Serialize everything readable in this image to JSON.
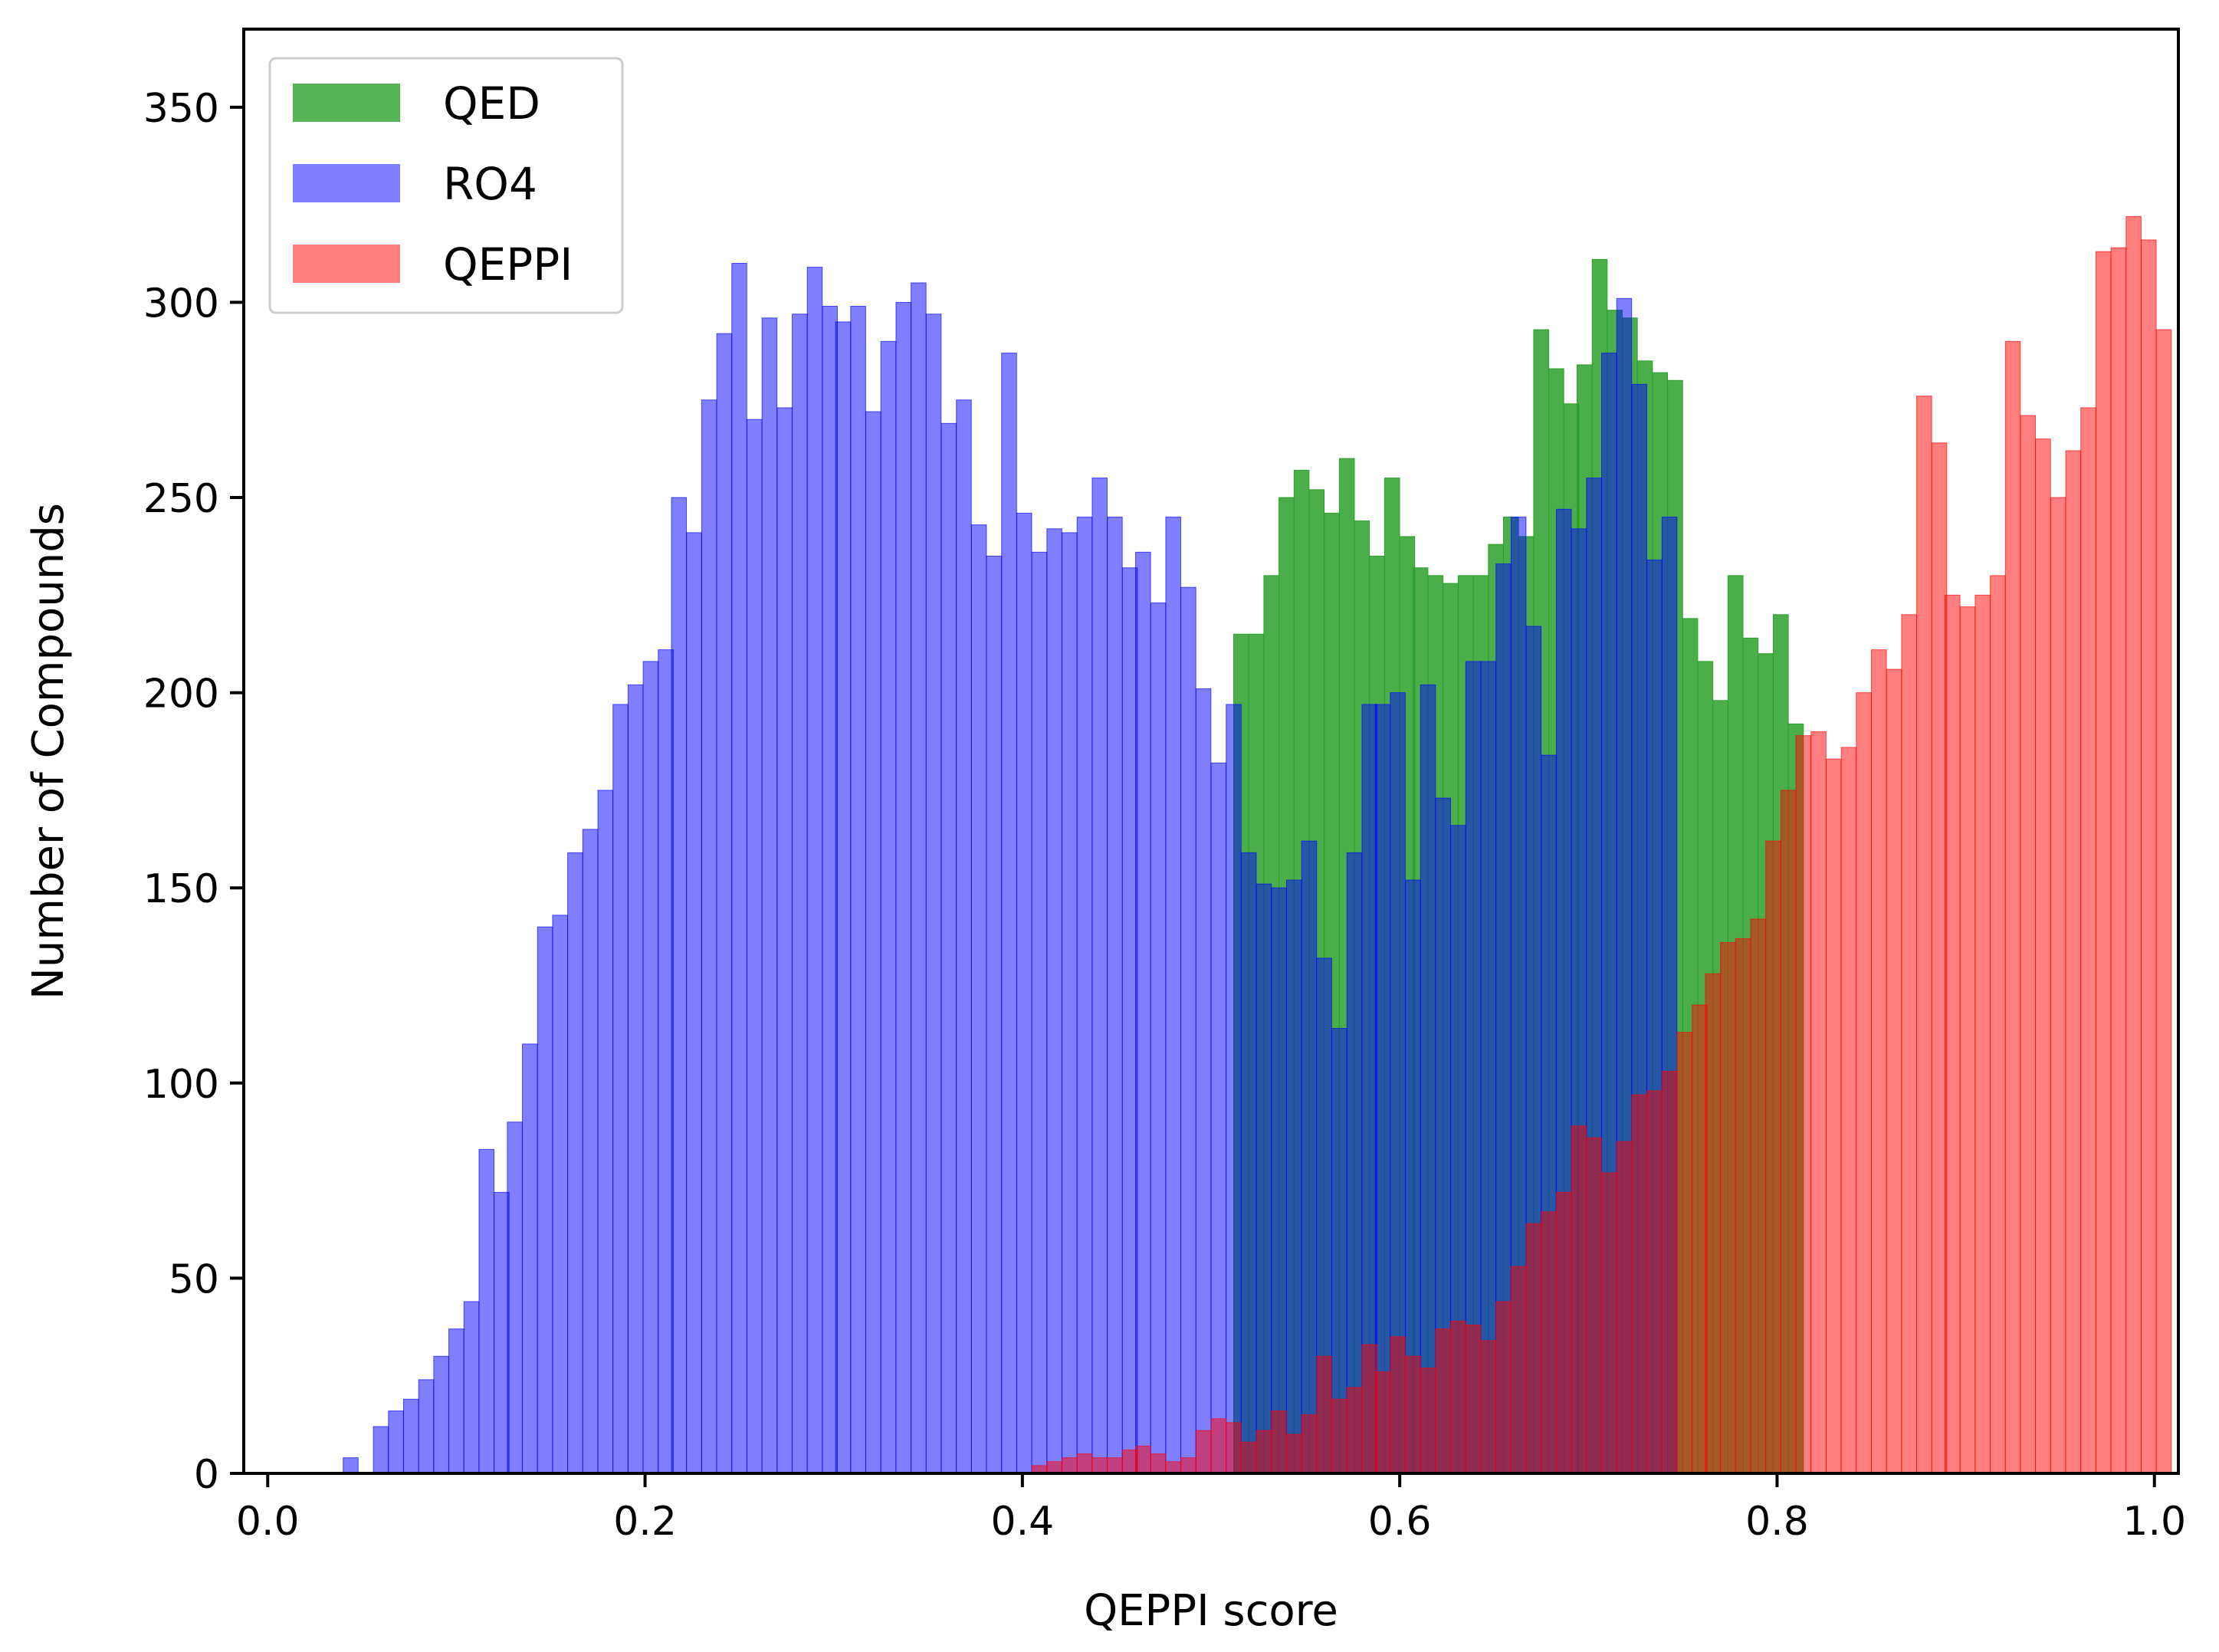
{
  "chart_data": {
    "type": "bar",
    "subtype": "histogram-overlay",
    "title": "",
    "xlabel": "QEPPI score",
    "ylabel": "Number of Compounds",
    "xlim": [
      -0.01,
      1.01
    ],
    "ylim": [
      0,
      370
    ],
    "xticks": [
      0.0,
      0.2,
      0.4,
      0.6,
      0.8,
      1.0
    ],
    "xtick_labels": [
      "0.0",
      "0.2",
      "0.4",
      "0.6",
      "0.8",
      "1.0"
    ],
    "yticks": [
      0,
      50,
      100,
      150,
      200,
      250,
      300,
      350
    ],
    "ytick_labels": [
      "0",
      "50",
      "100",
      "150",
      "200",
      "250",
      "300",
      "350"
    ],
    "grid": false,
    "legend_position": "top-left",
    "bin_width": 0.00794,
    "series": [
      {
        "name": "QED",
        "color": "#2ca02c",
        "alpha": 0.85,
        "x_start": 0.0,
        "values": [
          0,
          0,
          0,
          0,
          0,
          0,
          0,
          0,
          0,
          0,
          0,
          0,
          0,
          0,
          0,
          0,
          0,
          0,
          0,
          0,
          0,
          0,
          0,
          0,
          0,
          0,
          0,
          0,
          0,
          0,
          0,
          0,
          0,
          0,
          0,
          0,
          0,
          0,
          0,
          0,
          0,
          0,
          0,
          0,
          0,
          0,
          0,
          0,
          0,
          0,
          0,
          0,
          0,
          0,
          0,
          0,
          0,
          0,
          0,
          0,
          0,
          0,
          0,
          0,
          0,
          0,
          0,
          0,
          0,
          0,
          0,
          0,
          0,
          0,
          0,
          0,
          0,
          0,
          0,
          0,
          0,
          0,
          0,
          0,
          0,
          0,
          0,
          0,
          0,
          0,
          0,
          0,
          0,
          0,
          0,
          0,
          0,
          0,
          0,
          0,
          0,
          0,
          0,
          0,
          0,
          0,
          0,
          0,
          0,
          0,
          0,
          0,
          0,
          0,
          0,
          0,
          0,
          0,
          0,
          0,
          0,
          0,
          0,
          0,
          0,
          0
        ],
        "values_note": "",
        "bins": [
          [
            0.512,
            215
          ],
          [
            0.52,
            215
          ],
          [
            0.528,
            230
          ],
          [
            0.536,
            250
          ],
          [
            0.544,
            257
          ],
          [
            0.552,
            252
          ],
          [
            0.56,
            246
          ],
          [
            0.568,
            260
          ],
          [
            0.576,
            244
          ],
          [
            0.584,
            235
          ],
          [
            0.592,
            255
          ],
          [
            0.6,
            240
          ],
          [
            0.607,
            232
          ],
          [
            0.615,
            230
          ],
          [
            0.623,
            228
          ],
          [
            0.631,
            230
          ],
          [
            0.639,
            230
          ],
          [
            0.647,
            238
          ],
          [
            0.655,
            245
          ],
          [
            0.663,
            240
          ],
          [
            0.671,
            293
          ],
          [
            0.679,
            283
          ],
          [
            0.687,
            274
          ],
          [
            0.694,
            284
          ],
          [
            0.702,
            311
          ],
          [
            0.71,
            298
          ],
          [
            0.718,
            296
          ],
          [
            0.726,
            285
          ],
          [
            0.734,
            282
          ],
          [
            0.742,
            280
          ],
          [
            0.75,
            219
          ],
          [
            0.758,
            208
          ],
          [
            0.766,
            198
          ],
          [
            0.774,
            230
          ],
          [
            0.782,
            214
          ],
          [
            0.79,
            210
          ],
          [
            0.798,
            220
          ],
          [
            0.806,
            192
          ]
        ]
      },
      {
        "name": "RO4",
        "color": "#0000ff",
        "alpha": 0.5,
        "bins": [
          [
            0.04,
            4
          ],
          [
            0.048,
            0
          ],
          [
            0.056,
            12
          ],
          [
            0.064,
            16
          ],
          [
            0.072,
            19
          ],
          [
            0.08,
            24
          ],
          [
            0.088,
            30
          ],
          [
            0.096,
            37
          ],
          [
            0.104,
            44
          ],
          [
            0.112,
            83
          ],
          [
            0.12,
            72
          ],
          [
            0.127,
            90
          ],
          [
            0.135,
            110
          ],
          [
            0.143,
            140
          ],
          [
            0.151,
            143
          ],
          [
            0.159,
            159
          ],
          [
            0.167,
            165
          ],
          [
            0.175,
            175
          ],
          [
            0.183,
            197
          ],
          [
            0.191,
            202
          ],
          [
            0.199,
            208
          ],
          [
            0.207,
            211
          ],
          [
            0.214,
            250
          ],
          [
            0.222,
            241
          ],
          [
            0.23,
            275
          ],
          [
            0.238,
            292
          ],
          [
            0.246,
            310
          ],
          [
            0.254,
            270
          ],
          [
            0.262,
            296
          ],
          [
            0.27,
            273
          ],
          [
            0.278,
            297
          ],
          [
            0.286,
            309
          ],
          [
            0.294,
            299
          ],
          [
            0.301,
            295
          ],
          [
            0.309,
            299
          ],
          [
            0.317,
            272
          ],
          [
            0.325,
            290
          ],
          [
            0.333,
            300
          ],
          [
            0.341,
            305
          ],
          [
            0.349,
            297
          ],
          [
            0.357,
            269
          ],
          [
            0.365,
            275
          ],
          [
            0.373,
            243
          ],
          [
            0.381,
            235
          ],
          [
            0.389,
            287
          ],
          [
            0.397,
            246
          ],
          [
            0.405,
            236
          ],
          [
            0.413,
            242
          ],
          [
            0.421,
            241
          ],
          [
            0.429,
            245
          ],
          [
            0.437,
            255
          ],
          [
            0.445,
            245
          ],
          [
            0.453,
            232
          ],
          [
            0.46,
            236
          ],
          [
            0.468,
            223
          ],
          [
            0.476,
            245
          ],
          [
            0.484,
            227
          ],
          [
            0.492,
            201
          ],
          [
            0.5,
            182
          ],
          [
            0.508,
            197
          ],
          [
            0.516,
            159
          ],
          [
            0.524,
            151
          ],
          [
            0.532,
            150
          ],
          [
            0.54,
            152
          ],
          [
            0.548,
            162
          ],
          [
            0.556,
            132
          ],
          [
            0.564,
            114
          ],
          [
            0.572,
            159
          ],
          [
            0.58,
            197
          ],
          [
            0.587,
            197
          ],
          [
            0.595,
            200
          ],
          [
            0.603,
            152
          ],
          [
            0.611,
            202
          ],
          [
            0.619,
            173
          ],
          [
            0.627,
            166
          ],
          [
            0.635,
            208
          ],
          [
            0.643,
            208
          ],
          [
            0.651,
            233
          ],
          [
            0.659,
            245
          ],
          [
            0.667,
            217
          ],
          [
            0.675,
            184
          ],
          [
            0.683,
            247
          ],
          [
            0.691,
            242
          ],
          [
            0.699,
            255
          ],
          [
            0.707,
            287
          ],
          [
            0.715,
            301
          ],
          [
            0.723,
            279
          ],
          [
            0.731,
            234
          ],
          [
            0.739,
            245
          ]
        ]
      },
      {
        "name": "QEPPI",
        "color": "#ff0000",
        "alpha": 0.5,
        "bins": [
          [
            0.405,
            2
          ],
          [
            0.413,
            3
          ],
          [
            0.421,
            4
          ],
          [
            0.429,
            5
          ],
          [
            0.437,
            4
          ],
          [
            0.445,
            4
          ],
          [
            0.453,
            6
          ],
          [
            0.46,
            7
          ],
          [
            0.468,
            5
          ],
          [
            0.476,
            3
          ],
          [
            0.484,
            4
          ],
          [
            0.492,
            11
          ],
          [
            0.5,
            14
          ],
          [
            0.508,
            13
          ],
          [
            0.516,
            8
          ],
          [
            0.524,
            11
          ],
          [
            0.532,
            16
          ],
          [
            0.54,
            10
          ],
          [
            0.548,
            15
          ],
          [
            0.556,
            30
          ],
          [
            0.564,
            19
          ],
          [
            0.572,
            22
          ],
          [
            0.58,
            33
          ],
          [
            0.587,
            26
          ],
          [
            0.595,
            35
          ],
          [
            0.603,
            30
          ],
          [
            0.611,
            27
          ],
          [
            0.619,
            37
          ],
          [
            0.627,
            39
          ],
          [
            0.635,
            38
          ],
          [
            0.643,
            34
          ],
          [
            0.651,
            44
          ],
          [
            0.659,
            53
          ],
          [
            0.667,
            64
          ],
          [
            0.675,
            67
          ],
          [
            0.683,
            72
          ],
          [
            0.691,
            89
          ],
          [
            0.699,
            86
          ],
          [
            0.707,
            77
          ],
          [
            0.715,
            85
          ],
          [
            0.723,
            97
          ],
          [
            0.731,
            98
          ],
          [
            0.739,
            103
          ],
          [
            0.747,
            113
          ],
          [
            0.755,
            120
          ],
          [
            0.762,
            128
          ],
          [
            0.77,
            136
          ],
          [
            0.778,
            137
          ],
          [
            0.786,
            142
          ],
          [
            0.794,
            162
          ],
          [
            0.802,
            175
          ],
          [
            0.81,
            189
          ],
          [
            0.818,
            190
          ],
          [
            0.826,
            183
          ],
          [
            0.834,
            186
          ],
          [
            0.842,
            200
          ],
          [
            0.85,
            211
          ],
          [
            0.858,
            206
          ],
          [
            0.866,
            220
          ],
          [
            0.874,
            276
          ],
          [
            0.882,
            264
          ],
          [
            0.889,
            225
          ],
          [
            0.897,
            222
          ],
          [
            0.905,
            225
          ],
          [
            0.913,
            230
          ],
          [
            0.921,
            290
          ],
          [
            0.929,
            271
          ],
          [
            0.937,
            265
          ],
          [
            0.945,
            250
          ],
          [
            0.953,
            262
          ],
          [
            0.961,
            273
          ],
          [
            0.969,
            313
          ],
          [
            0.977,
            314
          ],
          [
            0.985,
            322
          ],
          [
            0.993,
            316
          ],
          [
            1.001,
            293
          ]
        ]
      }
    ]
  }
}
